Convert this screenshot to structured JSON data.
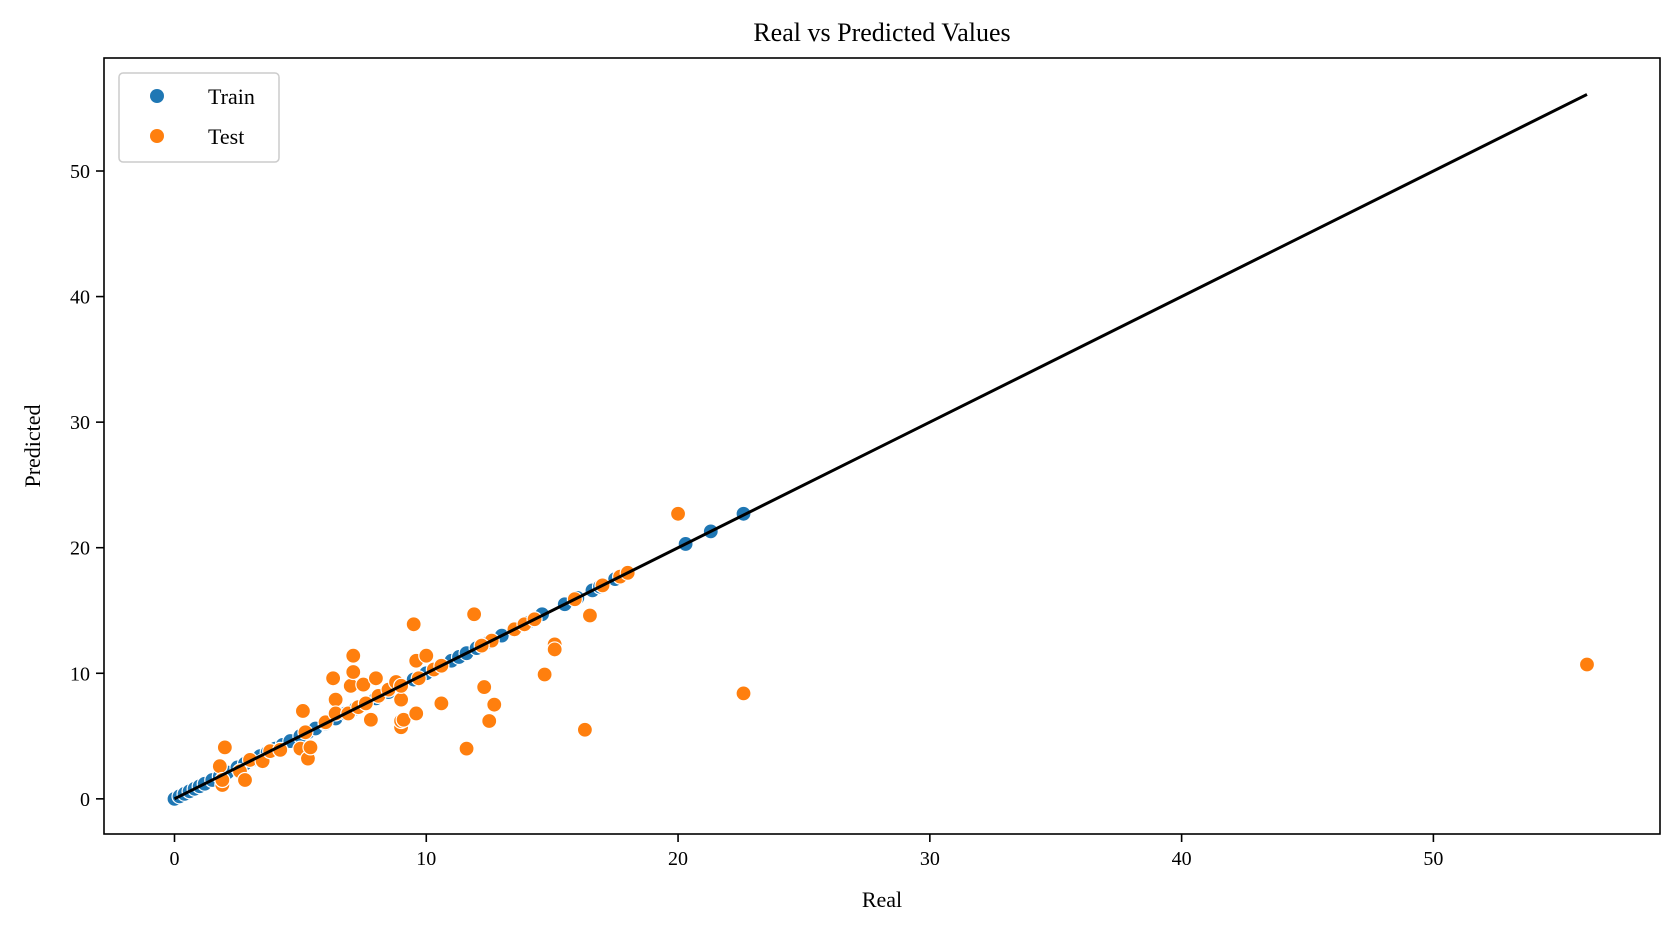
{
  "chart_data": {
    "type": "scatter",
    "title": "Real vs Predicted Values",
    "xlabel": "Real",
    "ylabel": "Predicted",
    "xlim": [
      -2.8,
      59.0
    ],
    "ylim": [
      -2.8,
      59.0
    ],
    "xticks": [
      0,
      10,
      20,
      30,
      40,
      50
    ],
    "yticks": [
      0,
      10,
      20,
      30,
      40,
      50
    ],
    "grid": false,
    "legend_position": "top-left",
    "reference_line": {
      "x": [
        0,
        56.1
      ],
      "y": [
        0,
        56.1
      ],
      "color": "#000000"
    },
    "series": [
      {
        "name": "Train",
        "color": "#1f77b4",
        "points": [
          [
            0.0,
            0.0
          ],
          [
            0.2,
            0.2
          ],
          [
            0.4,
            0.4
          ],
          [
            0.6,
            0.6
          ],
          [
            0.8,
            0.8
          ],
          [
            1.0,
            1.0
          ],
          [
            1.2,
            1.2
          ],
          [
            1.5,
            1.5
          ],
          [
            1.8,
            1.8
          ],
          [
            2.1,
            2.1
          ],
          [
            2.5,
            2.5
          ],
          [
            2.8,
            2.8
          ],
          [
            3.1,
            3.1
          ],
          [
            3.4,
            3.4
          ],
          [
            3.7,
            3.7
          ],
          [
            4.0,
            4.0
          ],
          [
            4.3,
            4.3
          ],
          [
            4.6,
            4.6
          ],
          [
            5.0,
            5.0
          ],
          [
            5.3,
            5.3
          ],
          [
            5.6,
            5.6
          ],
          [
            6.0,
            6.0
          ],
          [
            6.4,
            6.4
          ],
          [
            6.8,
            6.8
          ],
          [
            7.2,
            7.2
          ],
          [
            7.6,
            7.6
          ],
          [
            8.0,
            8.0
          ],
          [
            8.5,
            8.5
          ],
          [
            9.0,
            9.0
          ],
          [
            9.5,
            9.5
          ],
          [
            10.0,
            10.0
          ],
          [
            10.5,
            10.5
          ],
          [
            11.0,
            11.0
          ],
          [
            11.3,
            11.3
          ],
          [
            11.6,
            11.6
          ],
          [
            12.0,
            12.0
          ],
          [
            12.5,
            12.5
          ],
          [
            13.0,
            13.0
          ],
          [
            13.5,
            13.5
          ],
          [
            14.0,
            14.0
          ],
          [
            14.6,
            14.7
          ],
          [
            15.5,
            15.5
          ],
          [
            16.0,
            16.0
          ],
          [
            16.6,
            16.6
          ],
          [
            16.9,
            16.9
          ],
          [
            17.5,
            17.5
          ],
          [
            20.3,
            20.3
          ],
          [
            21.3,
            21.3
          ],
          [
            22.6,
            22.7
          ]
        ]
      },
      {
        "name": "Test",
        "color": "#ff7f0e",
        "points": [
          [
            1.8,
            2.6
          ],
          [
            2.0,
            4.1
          ],
          [
            1.9,
            1.1
          ],
          [
            1.9,
            1.5
          ],
          [
            2.6,
            2.2
          ],
          [
            2.8,
            1.5
          ],
          [
            3.0,
            3.1
          ],
          [
            3.5,
            3.0
          ],
          [
            3.8,
            3.8
          ],
          [
            4.2,
            3.9
          ],
          [
            5.0,
            4.0
          ],
          [
            5.2,
            5.3
          ],
          [
            5.1,
            7.0
          ],
          [
            5.3,
            3.2
          ],
          [
            5.4,
            4.1
          ],
          [
            6.0,
            6.1
          ],
          [
            6.3,
            9.6
          ],
          [
            6.4,
            7.9
          ],
          [
            6.4,
            6.8
          ],
          [
            6.9,
            6.8
          ],
          [
            7.0,
            9.0
          ],
          [
            7.1,
            10.1
          ],
          [
            7.1,
            11.4
          ],
          [
            7.3,
            7.3
          ],
          [
            7.5,
            9.1
          ],
          [
            7.6,
            7.6
          ],
          [
            7.8,
            6.3
          ],
          [
            8.0,
            9.6
          ],
          [
            8.1,
            8.2
          ],
          [
            8.5,
            8.7
          ],
          [
            8.8,
            9.3
          ],
          [
            9.0,
            5.7
          ],
          [
            9.0,
            6.2
          ],
          [
            9.0,
            7.9
          ],
          [
            9.1,
            6.3
          ],
          [
            9.0,
            9.0
          ],
          [
            9.5,
            13.9
          ],
          [
            9.6,
            11.0
          ],
          [
            9.6,
            6.8
          ],
          [
            9.7,
            9.6
          ],
          [
            10.0,
            11.4
          ],
          [
            10.3,
            10.3
          ],
          [
            10.6,
            7.6
          ],
          [
            10.6,
            10.6
          ],
          [
            11.6,
            4.0
          ],
          [
            11.9,
            14.7
          ],
          [
            12.3,
            8.9
          ],
          [
            12.5,
            6.2
          ],
          [
            12.6,
            12.6
          ],
          [
            12.7,
            7.5
          ],
          [
            12.2,
            12.2
          ],
          [
            13.5,
            13.5
          ],
          [
            13.9,
            13.9
          ],
          [
            14.3,
            14.3
          ],
          [
            14.7,
            9.9
          ],
          [
            15.1,
            12.3
          ],
          [
            15.1,
            11.9
          ],
          [
            15.9,
            15.9
          ],
          [
            16.3,
            5.5
          ],
          [
            16.5,
            14.6
          ],
          [
            17.0,
            17.0
          ],
          [
            17.7,
            17.7
          ],
          [
            18.0,
            18.0
          ],
          [
            20.0,
            22.7
          ],
          [
            22.6,
            8.4
          ],
          [
            56.1,
            10.7
          ]
        ]
      }
    ]
  }
}
